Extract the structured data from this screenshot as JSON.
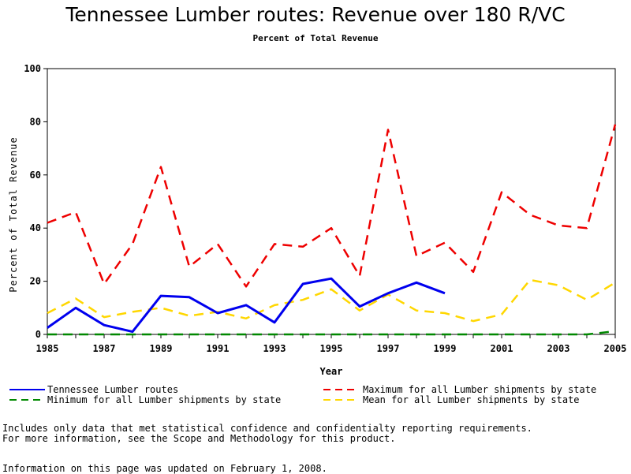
{
  "chart_data": {
    "type": "line",
    "title": "Tennessee Lumber routes: Revenue over 180 R/VC",
    "subtitle": "Percent of Total Revenue",
    "xlabel": "Year",
    "ylabel": "Percent of Total Revenue",
    "xlim": [
      1985,
      2005
    ],
    "ylim": [
      0,
      100
    ],
    "x_ticks": [
      1985,
      1987,
      1989,
      1991,
      1993,
      1995,
      1997,
      1999,
      2001,
      2003,
      2005
    ],
    "y_ticks": [
      0,
      20,
      40,
      60,
      80,
      100
    ],
    "x": [
      1985,
      1986,
      1987,
      1988,
      1989,
      1990,
      1991,
      1992,
      1993,
      1994,
      1995,
      1996,
      1997,
      1998,
      1999,
      2000,
      2001,
      2002,
      2003,
      2004,
      2005
    ],
    "series": [
      {
        "name": "Tennessee Lumber routes",
        "color": "#0000ee",
        "style": "solid",
        "values": [
          2.5,
          10,
          3.5,
          1,
          14.5,
          14,
          8,
          11,
          4.5,
          19,
          21,
          10.5,
          15.5,
          19.5,
          15.5,
          null,
          null,
          null,
          null,
          null,
          null
        ]
      },
      {
        "name": "Maximum for all Lumber shipments by state",
        "color": "#ee0000",
        "style": "dashed",
        "values": [
          42,
          46,
          19,
          34,
          63,
          25.5,
          34,
          18,
          34,
          33,
          40,
          22,
          77,
          29.5,
          34.5,
          23.5,
          53.5,
          45,
          41,
          40,
          79
        ]
      },
      {
        "name": "Minimum for all Lumber shipments by state",
        "color": "#008800",
        "style": "dashed",
        "values": [
          0,
          0,
          0,
          0,
          0,
          0,
          0,
          0,
          0,
          0,
          0,
          0,
          0,
          0,
          0,
          0,
          0,
          0,
          0,
          0,
          1.2
        ]
      },
      {
        "name": "Mean for all Lumber shipments by state",
        "color": "#ffd700",
        "style": "dashed",
        "values": [
          8,
          13.5,
          6.5,
          8.5,
          10,
          7,
          8.5,
          6,
          11,
          13,
          17,
          9,
          15,
          9,
          8,
          5,
          7.5,
          20.5,
          18.5,
          13,
          19.5
        ]
      }
    ],
    "legend": [
      {
        "label": "Tennessee Lumber routes",
        "series": 0
      },
      {
        "label": "Maximum for all Lumber shipments by state",
        "series": 1
      },
      {
        "label": "Minimum for all Lumber shipments by state",
        "series": 2
      },
      {
        "label": "Mean for all Lumber shipments by state",
        "series": 3
      }
    ]
  },
  "footnotes": {
    "line1": "Includes only data that met statistical confidence and confidentialty reporting requirements.",
    "line2": "For more information, see the Scope and Methodology for this product.",
    "updated": "Information on this page was updated on February 1, 2008."
  }
}
